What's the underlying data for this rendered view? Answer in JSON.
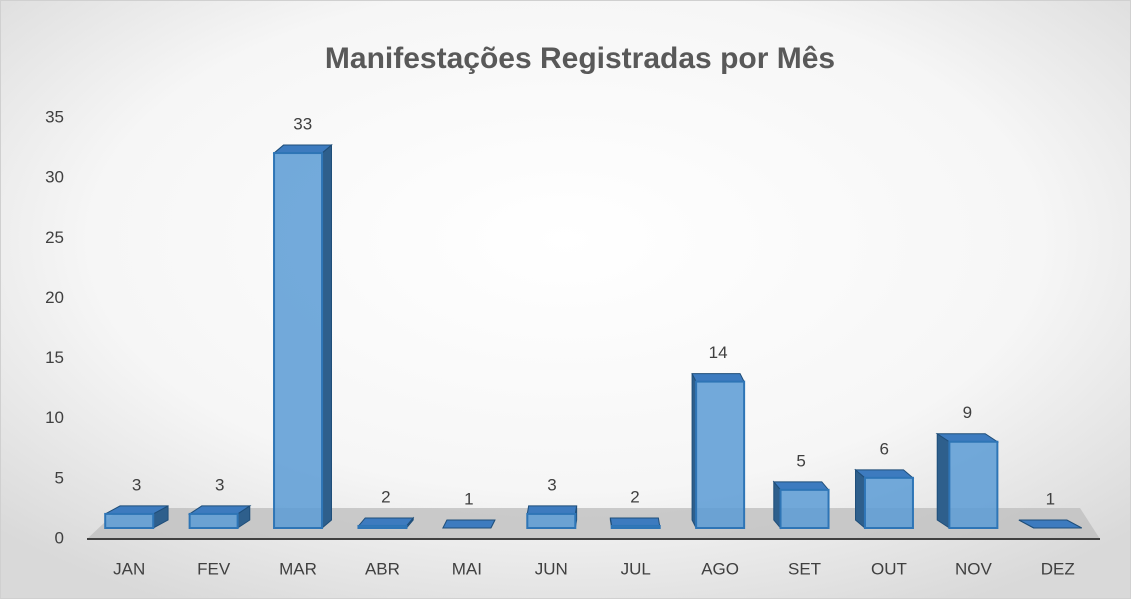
{
  "chart_data": {
    "type": "bar3d",
    "title": "Manifestações Registradas por Mês",
    "categories": [
      "JAN",
      "FEV",
      "MAR",
      "ABR",
      "MAI",
      "JUN",
      "JUL",
      "AGO",
      "SET",
      "OUT",
      "NOV",
      "DEZ"
    ],
    "values": [
      3,
      3,
      33,
      2,
      1,
      3,
      2,
      14,
      5,
      6,
      9,
      1
    ],
    "color": "#5b9bd5",
    "ylim": [
      0,
      35
    ],
    "yticks": [
      0,
      5,
      10,
      15,
      20,
      25,
      30,
      35
    ],
    "grid": false
  }
}
